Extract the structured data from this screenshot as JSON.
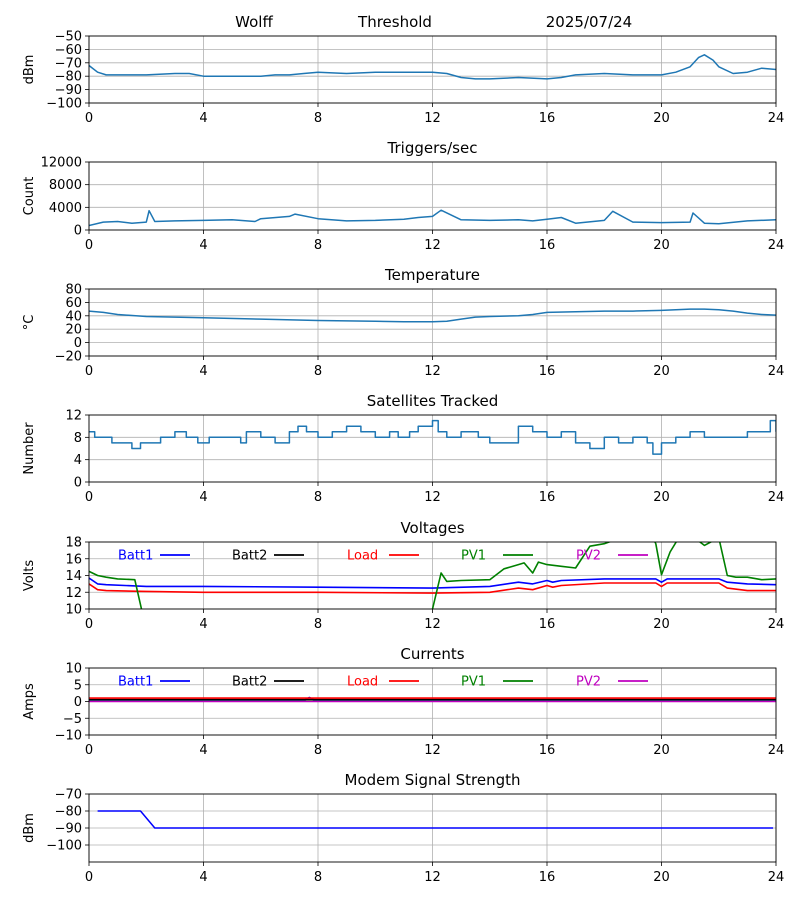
{
  "header": {
    "station": "Wolff",
    "mode": "Threshold",
    "date": "2025/07/24"
  },
  "chart_data": [
    {
      "id": "signal",
      "type": "line",
      "title": "",
      "xlabel": "",
      "ylabel": "dBm",
      "xlim": [
        0,
        24
      ],
      "ylim": [
        -100,
        -50
      ],
      "xticks": [
        0,
        4,
        8,
        12,
        16,
        20,
        24
      ],
      "yticks": [
        -100,
        -90,
        -80,
        -70,
        -60,
        -50
      ],
      "yticklabels": [
        "−100",
        "−90",
        "−80",
        "−70",
        "−60",
        "−50"
      ],
      "grid": true,
      "series": [
        {
          "color": "#1f77b4",
          "x": [
            0,
            0.3,
            0.6,
            1,
            2,
            3,
            3.5,
            4,
            5,
            6,
            6.5,
            7,
            7.5,
            8,
            9,
            10,
            11,
            12,
            12.5,
            13,
            13.5,
            14,
            15,
            16,
            16.5,
            17,
            18,
            19,
            20,
            20.5,
            21,
            21.3,
            21.5,
            21.8,
            22,
            22.5,
            23,
            23.5,
            24
          ],
          "y": [
            -72,
            -77,
            -79,
            -79,
            -79,
            -78,
            -78,
            -80,
            -80,
            -80,
            -79,
            -79,
            -78,
            -77,
            -78,
            -77,
            -77,
            -77,
            -78,
            -81,
            -82,
            -82,
            -81,
            -82,
            -81,
            -79,
            -78,
            -79,
            -79,
            -77,
            -73,
            -66,
            -64,
            -68,
            -73,
            -78,
            -77,
            -74,
            -75
          ]
        }
      ]
    },
    {
      "id": "triggers",
      "type": "line",
      "title": "Triggers/sec",
      "xlabel": "",
      "ylabel": "Count",
      "xlim": [
        0,
        24
      ],
      "ylim": [
        0,
        12000
      ],
      "xticks": [
        0,
        4,
        8,
        12,
        16,
        20,
        24
      ],
      "yticks": [
        0,
        4000,
        8000,
        12000
      ],
      "yticklabels": [
        "0",
        "4000",
        "8000",
        "12000"
      ],
      "grid": true,
      "series": [
        {
          "color": "#1f77b4",
          "x": [
            0,
            0.5,
            1,
            1.5,
            2,
            2.1,
            2.3,
            3,
            4,
            5,
            5.8,
            6,
            7,
            7.2,
            8,
            9,
            10,
            11,
            11.5,
            12,
            12.3,
            13,
            14,
            15,
            15.5,
            16,
            16.5,
            17,
            18,
            18.3,
            19,
            20,
            21,
            21.1,
            21.5,
            22,
            23,
            24
          ],
          "y": [
            800,
            1400,
            1500,
            1200,
            1400,
            3400,
            1500,
            1600,
            1700,
            1800,
            1500,
            2000,
            2400,
            2800,
            2000,
            1600,
            1700,
            1900,
            2200,
            2400,
            3500,
            1800,
            1700,
            1800,
            1600,
            1900,
            2200,
            1200,
            1700,
            3300,
            1400,
            1300,
            1400,
            3000,
            1200,
            1100,
            1600,
            1800
          ]
        }
      ]
    },
    {
      "id": "temperature",
      "type": "line",
      "title": "Temperature",
      "xlabel": "",
      "ylabel": "°C",
      "xlim": [
        0,
        24
      ],
      "ylim": [
        -20,
        80
      ],
      "xticks": [
        0,
        4,
        8,
        12,
        16,
        20,
        24
      ],
      "yticks": [
        -20,
        0,
        20,
        40,
        60,
        80
      ],
      "yticklabels": [
        "−20",
        "0",
        "20",
        "40",
        "60",
        "80"
      ],
      "grid": true,
      "series": [
        {
          "color": "#1f77b4",
          "x": [
            0,
            0.5,
            1,
            2,
            3,
            4,
            6,
            8,
            10,
            11,
            12,
            12.5,
            13,
            13.5,
            14,
            15,
            15.5,
            16,
            17,
            18,
            19,
            20,
            20.5,
            21,
            21.5,
            22,
            22.5,
            23,
            23.5,
            24
          ],
          "y": [
            47,
            45,
            42,
            39,
            38,
            37,
            35,
            33,
            32,
            31,
            31,
            32,
            35,
            38,
            39,
            40,
            42,
            45,
            46,
            47,
            47,
            48,
            49,
            50,
            50,
            49,
            47,
            44,
            42,
            41
          ]
        }
      ]
    },
    {
      "id": "satellites",
      "type": "line",
      "title": "Satellites Tracked",
      "xlabel": "",
      "ylabel": "Number",
      "xlim": [
        0,
        24
      ],
      "ylim": [
        0,
        12
      ],
      "xticks": [
        0,
        4,
        8,
        12,
        16,
        20,
        24
      ],
      "yticks": [
        0,
        4,
        8,
        12
      ],
      "yticklabels": [
        "0",
        "4",
        "8",
        "12"
      ],
      "grid": true,
      "series": [
        {
          "color": "#1f77b4",
          "step": true,
          "x": [
            0,
            0.2,
            0.5,
            0.8,
            1.1,
            1.5,
            1.8,
            2,
            2.5,
            3,
            3.4,
            3.8,
            4.2,
            5,
            5.3,
            5.5,
            6,
            6.5,
            7,
            7.3,
            7.6,
            8,
            8.5,
            9,
            9.5,
            10,
            10.5,
            10.8,
            11.2,
            11.5,
            12,
            12.2,
            12.5,
            13,
            13.6,
            14,
            14.5,
            15,
            15.5,
            16,
            16.5,
            17,
            17.5,
            18,
            18.5,
            19,
            19.5,
            19.7,
            20,
            20.5,
            21,
            21.5,
            22,
            22.5,
            23,
            23.5,
            23.8,
            24
          ],
          "y": [
            9,
            8,
            8,
            7,
            7,
            6,
            7,
            7,
            8,
            9,
            8,
            7,
            8,
            8,
            7,
            9,
            8,
            7,
            9,
            10,
            9,
            8,
            9,
            10,
            9,
            8,
            9,
            8,
            9,
            10,
            11,
            9,
            8,
            9,
            8,
            7,
            7,
            10,
            9,
            8,
            9,
            7,
            6,
            8,
            7,
            8,
            7,
            5,
            7,
            8,
            9,
            8,
            8,
            8,
            9,
            9,
            11,
            9
          ]
        }
      ]
    },
    {
      "id": "voltages",
      "type": "line",
      "title": "Voltages",
      "xlabel": "",
      "ylabel": "Volts",
      "xlim": [
        0,
        24
      ],
      "ylim": [
        10,
        18
      ],
      "xticks": [
        0,
        4,
        8,
        12,
        16,
        20,
        24
      ],
      "yticks": [
        10,
        12,
        14,
        16,
        18
      ],
      "yticklabels": [
        "10",
        "12",
        "14",
        "16",
        "18"
      ],
      "grid": true,
      "legend": "top, in one row",
      "series": [
        {
          "name": "Batt1",
          "color": "#0000ff",
          "x": [
            0,
            0.3,
            0.6,
            2,
            4,
            8,
            12,
            14,
            15,
            15.5,
            16,
            16.2,
            16.5,
            18,
            19.8,
            20,
            20.2,
            22,
            22.3,
            23,
            24
          ],
          "y": [
            13.7,
            13,
            12.9,
            12.7,
            12.7,
            12.6,
            12.5,
            12.7,
            13.2,
            13,
            13.4,
            13.2,
            13.4,
            13.6,
            13.6,
            13.2,
            13.6,
            13.6,
            13.2,
            13,
            12.9
          ]
        },
        {
          "name": "Batt2",
          "color": "#000000",
          "x": [],
          "y": []
        },
        {
          "name": "Load",
          "color": "#ff0000",
          "x": [
            0,
            0.3,
            0.6,
            2,
            4,
            8,
            12,
            14,
            15,
            15.5,
            16,
            16.2,
            16.5,
            18,
            19.8,
            20,
            20.2,
            22,
            22.3,
            23,
            24
          ],
          "y": [
            13,
            12.3,
            12.2,
            12.1,
            12,
            12,
            11.9,
            12,
            12.5,
            12.3,
            12.8,
            12.6,
            12.8,
            13.1,
            13.1,
            12.7,
            13.1,
            13.1,
            12.5,
            12.2,
            12.2
          ]
        },
        {
          "name": "PV1",
          "color": "#008000",
          "x": [
            0,
            0.3,
            0.6,
            1,
            1.6,
            1.9,
            null,
            12,
            12.3,
            12.5,
            13,
            14,
            14.5,
            15,
            15.2,
            15.5,
            15.7,
            16,
            16.5,
            17,
            17.5,
            18,
            18.5,
            19,
            19.5,
            19.7,
            19.8,
            20,
            20.3,
            20.6,
            21,
            21.5,
            22,
            22.3,
            22.6,
            23,
            23.5,
            24
          ],
          "y": [
            14.5,
            14,
            13.8,
            13.6,
            13.5,
            9,
            null,
            10,
            14.3,
            13.3,
            13.4,
            13.5,
            14.8,
            15.3,
            15.5,
            14.3,
            15.6,
            15.3,
            15.1,
            14.9,
            17.5,
            17.8,
            18.4,
            18.8,
            19,
            18.5,
            17.8,
            14.1,
            16.8,
            18.5,
            18.9,
            17.6,
            18.5,
            14,
            13.8,
            13.8,
            13.5,
            13.6
          ]
        },
        {
          "name": "PV2",
          "color": "#bf00bf",
          "x": [],
          "y": []
        }
      ]
    },
    {
      "id": "currents",
      "type": "line",
      "title": "Currents",
      "xlabel": "",
      "ylabel": "Amps",
      "xlim": [
        0,
        24
      ],
      "ylim": [
        -10,
        10
      ],
      "xticks": [
        0,
        4,
        8,
        12,
        16,
        20,
        24
      ],
      "yticks": [
        -10,
        -5,
        0,
        5,
        10
      ],
      "yticklabels": [
        "−10",
        "−5",
        "0",
        "5",
        "10"
      ],
      "grid": true,
      "legend": "top, in one row",
      "series": [
        {
          "name": "Batt1",
          "color": "#0000ff",
          "x": [
            0,
            7.5,
            7.7,
            7.9,
            24
          ],
          "y": [
            0.3,
            0.3,
            1.2,
            0.3,
            0.3
          ]
        },
        {
          "name": "Batt2",
          "color": "#000000",
          "x": [
            0,
            24
          ],
          "y": [
            0.6,
            0.6
          ]
        },
        {
          "name": "Load",
          "color": "#ff0000",
          "x": [
            0,
            24
          ],
          "y": [
            1,
            1
          ]
        },
        {
          "name": "PV1",
          "color": "#008000",
          "x": [
            0,
            24
          ],
          "y": [
            0.1,
            0.1
          ]
        },
        {
          "name": "PV2",
          "color": "#bf00bf",
          "x": [
            0,
            24
          ],
          "y": [
            0,
            0
          ]
        }
      ]
    },
    {
      "id": "modem",
      "type": "line",
      "title": "Modem Signal Strength",
      "xlabel": "",
      "ylabel": "dBm",
      "xlim": [
        0,
        24
      ],
      "ylim": [
        -110,
        -70
      ],
      "xticks": [
        0,
        4,
        8,
        12,
        16,
        20,
        24
      ],
      "yticks": [
        -100,
        -90,
        -80,
        -70
      ],
      "yticklabels": [
        "−100",
        "−90",
        "−80",
        "−70"
      ],
      "grid": true,
      "series": [
        {
          "color": "#0000ff",
          "x": [
            0.3,
            1.8,
            2.3,
            23.9
          ],
          "y": [
            -80,
            -80,
            -90,
            -90
          ]
        }
      ]
    }
  ]
}
